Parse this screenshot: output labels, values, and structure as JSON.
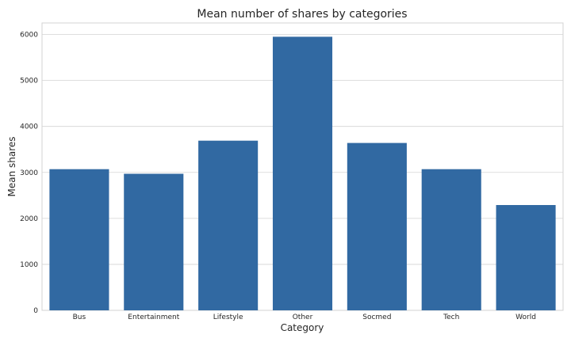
{
  "chart_data": {
    "type": "bar",
    "title": "Mean number of shares by categories",
    "xlabel": "Category",
    "ylabel": "Mean shares",
    "categories": [
      "Bus",
      "Entertainment",
      "Lifestyle",
      "Other",
      "Socmed",
      "Tech",
      "World"
    ],
    "values": [
      3070,
      2970,
      3690,
      5950,
      3640,
      3070,
      2290
    ],
    "ylim": [
      0,
      6250
    ],
    "yticks": [
      0,
      1000,
      2000,
      3000,
      4000,
      5000,
      6000
    ],
    "grid": "horizontal",
    "bar_color": "#3169a2"
  }
}
